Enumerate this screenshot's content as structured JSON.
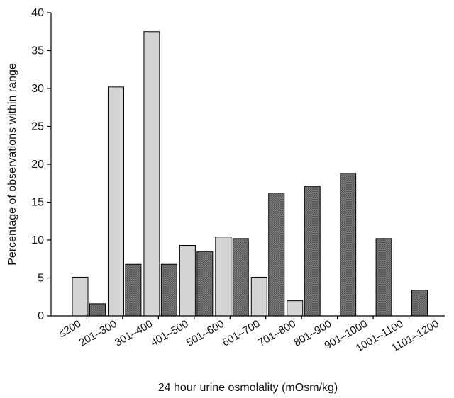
{
  "chart_data": {
    "type": "bar",
    "title": "",
    "xlabel": "24 hour urine osmolality (mOsm/kg)",
    "ylabel": "Percentage of observations within range",
    "ylim": [
      0,
      40
    ],
    "yticks": [
      0,
      5,
      10,
      15,
      20,
      25,
      30,
      35,
      40
    ],
    "grid": false,
    "legend": "none",
    "categories": [
      "≤200",
      "201–300",
      "301–400",
      "401–500",
      "501–600",
      "601–700",
      "701–800",
      "801–900",
      "901–1000",
      "1001–1100",
      "1101–1200"
    ],
    "series": [
      {
        "color": "#7a7a7a",
        "pattern": "crosshatch-dark",
        "values": [
          0,
          1.6,
          6.8,
          6.8,
          8.5,
          10.2,
          16.2,
          17.1,
          18.8,
          10.2,
          3.4
        ]
      },
      {
        "color": "#d4d4d4",
        "pattern": "solid-light",
        "values": [
          5.1,
          30.2,
          37.5,
          9.3,
          10.4,
          5.1,
          2.0,
          0,
          0,
          0,
          0
        ]
      }
    ]
  }
}
